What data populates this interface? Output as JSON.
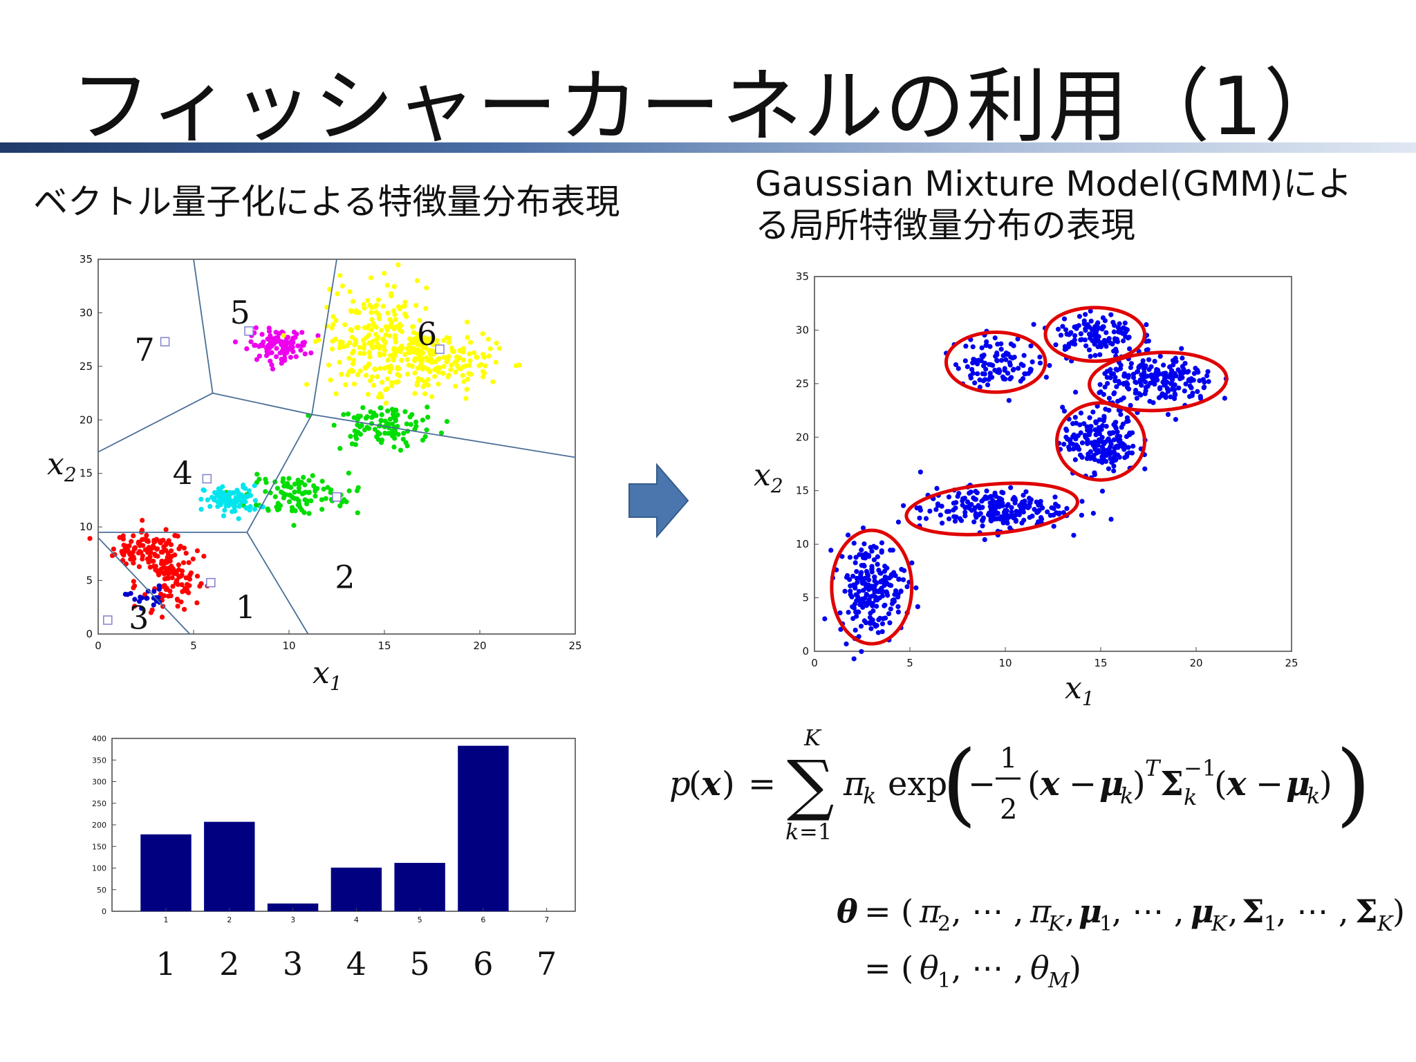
{
  "slide": {
    "title": "フィッシャーカーネルの利用（1）",
    "left_heading": "ベクトル量子化による特徴量分布表現",
    "right_heading_line1": "Gaussian Mixture Model(GMM)によ",
    "right_heading_line2": "る局所特徴量分布の表現"
  },
  "colors": {
    "cluster_1": "#ff0000",
    "cluster_2": "#00dd00",
    "cluster_3": "#0000cc",
    "cluster_4": "#00e5ee",
    "cluster_5": "#ee00ee",
    "cluster_6": "#ffff00",
    "gmm_points": "#0000ee",
    "gmm_ellipse": "#e00000",
    "bar": "#000080",
    "voronoi_line": "#4a6e96",
    "arrow": "#4a76ad"
  },
  "chart_data": [
    {
      "type": "scatter",
      "title": "",
      "xlabel": "x1",
      "ylabel": "x2",
      "xlim": [
        0,
        25
      ],
      "ylim": [
        0,
        35
      ],
      "xticks": [
        "0",
        "5",
        "10",
        "15",
        "20",
        "25"
      ],
      "yticks": [
        "0",
        "5",
        "10",
        "15",
        "20",
        "25",
        "30",
        "35"
      ],
      "overlay": "voronoi-partition",
      "series": [
        {
          "name": "1",
          "color": "#ff0000",
          "cx": 3.5,
          "cy": 6.5,
          "n": 210
        },
        {
          "name": "2",
          "color": "#00dd00",
          "cx": 14.7,
          "cy": 19,
          "n": 200
        },
        {
          "name": "3",
          "color": "#0000cc",
          "cx": 2.5,
          "cy": 3.5,
          "n": 20
        },
        {
          "name": "4",
          "color": "#00e5ee",
          "cx": 7,
          "cy": 12.5,
          "n": 100
        },
        {
          "name": "5",
          "color": "#ee00ee",
          "cx": 9.5,
          "cy": 27,
          "n": 110
        },
        {
          "name": "6",
          "color": "#ffff00",
          "cx": 16,
          "cy": 26,
          "n": 380
        }
      ],
      "centroids": [
        {
          "label": "1",
          "x": 5.9,
          "y": 4.8
        },
        {
          "label": "2",
          "x": 12.5,
          "y": 12.8
        },
        {
          "label": "3",
          "x": 0.5,
          "y": 1.3
        },
        {
          "label": "4",
          "x": 5.7,
          "y": 14.5
        },
        {
          "label": "5",
          "x": 7.9,
          "y": 28.3
        },
        {
          "label": "6",
          "x": 17.9,
          "y": 26.6
        },
        {
          "label": "7",
          "x": 3.5,
          "y": 27.3
        }
      ]
    },
    {
      "type": "bar",
      "title": "",
      "categories": [
        "1",
        "2",
        "3",
        "4",
        "5",
        "6",
        "7"
      ],
      "values": [
        178,
        207,
        18,
        101,
        112,
        383,
        0
      ],
      "ylim": [
        0,
        400
      ],
      "yticks": [
        "0",
        "50",
        "100",
        "150",
        "200",
        "250",
        "300",
        "350",
        "400"
      ],
      "big_labels": [
        "1",
        "2",
        "3",
        "4",
        "5",
        "6",
        "7"
      ]
    },
    {
      "type": "scatter",
      "title": "",
      "xlabel": "x1",
      "ylabel": "x2",
      "xlim": [
        0,
        25
      ],
      "ylim": [
        0,
        35
      ],
      "xticks": [
        "0",
        "5",
        "10",
        "15",
        "20",
        "25"
      ],
      "yticks": [
        "0",
        "5",
        "10",
        "15",
        "20",
        "25",
        "30",
        "35"
      ],
      "components": [
        {
          "cx": 3,
          "cy": 6,
          "rx": 2.1,
          "ry": 5.3,
          "rot": 0
        },
        {
          "cx": 9.3,
          "cy": 13.3,
          "rx": 4.5,
          "ry": 2.3,
          "rot": 5
        },
        {
          "cx": 15,
          "cy": 19.6,
          "rx": 2.3,
          "ry": 3.6,
          "rot": 0
        },
        {
          "cx": 9.5,
          "cy": 27,
          "rx": 2.6,
          "ry": 2.8,
          "rot": 0
        },
        {
          "cx": 14.7,
          "cy": 29.6,
          "rx": 2.6,
          "ry": 2.5,
          "rot": 0
        },
        {
          "cx": 18,
          "cy": 25.2,
          "rx": 3.6,
          "ry": 2.7,
          "rot": 3
        }
      ]
    }
  ],
  "equations": {
    "gmm_density": "p(x) = Σ_{k=1}^{K} π_k exp(−½ (x − μ_k)^T Σ_k^{−1} (x − μ_k))",
    "theta_def": "θ = (π_2, ⋯, π_K, μ_1, ⋯, μ_K, Σ_1, ⋯, Σ_K)",
    "theta_flat": "= (θ_1, ⋯, θ_M)"
  }
}
